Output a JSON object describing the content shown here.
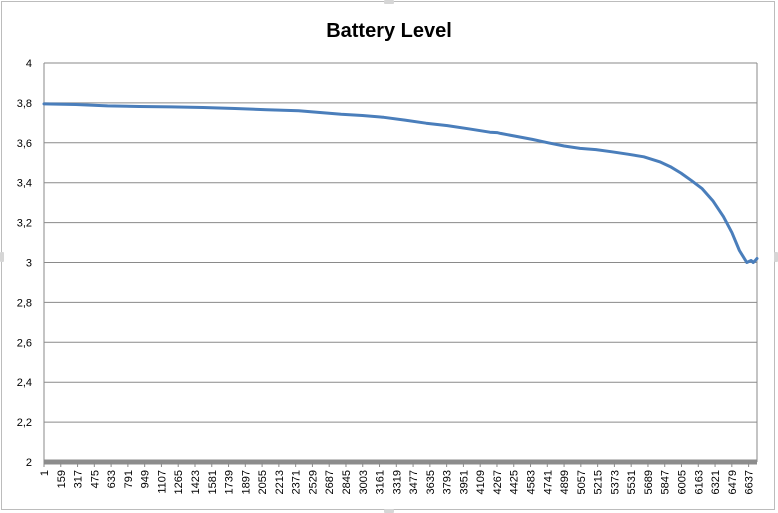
{
  "chart_data": {
    "type": "line",
    "title": "Battery Level",
    "xlabel": "",
    "ylabel": "",
    "ylim": [
      2,
      4
    ],
    "y_ticks": [
      "4",
      "3,8",
      "3,6",
      "3,4",
      "3,2",
      "3",
      "2,8",
      "2,6",
      "2,4",
      "2,2",
      "2"
    ],
    "y_tick_values": [
      4,
      3.8,
      3.6,
      3.4,
      3.2,
      3,
      2.8,
      2.6,
      2.4,
      2.2,
      2
    ],
    "x_range": [
      1,
      6716
    ],
    "x_tick_labels": [
      "1",
      "159",
      "317",
      "475",
      "633",
      "791",
      "949",
      "1107",
      "1265",
      "1423",
      "1581",
      "1739",
      "1897",
      "2055",
      "2213",
      "2371",
      "2529",
      "2687",
      "2845",
      "3003",
      "3161",
      "3319",
      "3477",
      "3635",
      "3793",
      "3951",
      "4109",
      "4267",
      "4425",
      "4583",
      "4741",
      "4899",
      "5057",
      "5215",
      "5373",
      "5531",
      "5689",
      "5847",
      "6005",
      "6163",
      "6321",
      "6479",
      "6637"
    ],
    "grid": true,
    "legend": "none",
    "line_color": "#4a7ebb",
    "series": [
      {
        "x": [
          1,
          300,
          600,
          900,
          1200,
          1500,
          1800,
          2100,
          2400,
          2600,
          2800,
          3000,
          3200,
          3400,
          3600,
          3800,
          4000,
          4200,
          4267,
          4300,
          4450,
          4600,
          4750,
          4900,
          5050,
          5200,
          5350,
          5500,
          5650,
          5800,
          5900,
          6000,
          6100,
          6200,
          6300,
          6400,
          6480,
          6550,
          6620,
          6660,
          6680,
          6700,
          6716
        ],
        "values": [
          3.795,
          3.792,
          3.785,
          3.782,
          3.78,
          3.777,
          3.772,
          3.766,
          3.761,
          3.752,
          3.743,
          3.737,
          3.728,
          3.714,
          3.698,
          3.686,
          3.67,
          3.653,
          3.651,
          3.647,
          3.632,
          3.617,
          3.6,
          3.584,
          3.572,
          3.566,
          3.555,
          3.543,
          3.53,
          3.505,
          3.48,
          3.448,
          3.41,
          3.37,
          3.31,
          3.23,
          3.15,
          3.06,
          3.0,
          3.01,
          3.0,
          3.01,
          3.02
        ]
      }
    ]
  }
}
